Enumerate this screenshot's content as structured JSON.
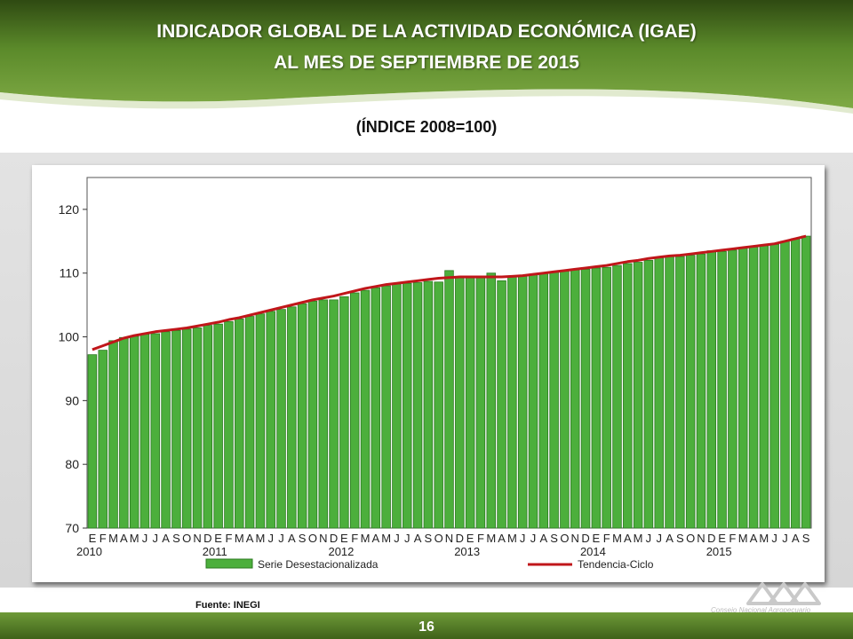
{
  "slide": {
    "title_line1": "INDICADOR GLOBAL DE LA ACTIVIDAD ECONÓMICA (IGAE)",
    "title_line2": "AL MES DE SEPTIEMBRE DE 2015",
    "subtitle": "(ÍNDICE 2008=100)",
    "source": "Fuente: INEGI",
    "page_number": "16",
    "logo_text": "Consejo Nacional Agropecuario",
    "colors": {
      "header_green": "#5a7f28",
      "bar_green": "#4caf3c",
      "trend_red": "#c0161a"
    }
  },
  "chart_data": {
    "type": "bar",
    "ylim": [
      70,
      125
    ],
    "yticks": [
      70,
      80,
      90,
      100,
      110,
      120
    ],
    "grid": false,
    "month_labels": [
      "E",
      "F",
      "M",
      "A",
      "M",
      "J",
      "J",
      "A",
      "S",
      "O",
      "N",
      "D",
      "E",
      "F",
      "M",
      "A",
      "M",
      "J",
      "J",
      "A",
      "S",
      "O",
      "N",
      "D",
      "E",
      "F",
      "M",
      "A",
      "M",
      "J",
      "J",
      "A",
      "S",
      "O",
      "N",
      "D",
      "E",
      "F",
      "M",
      "A",
      "M",
      "J",
      "J",
      "A",
      "S",
      "O",
      "N",
      "D",
      "E",
      "F",
      "M",
      "A",
      "M",
      "J",
      "J",
      "A",
      "S",
      "O",
      "N",
      "D",
      "E",
      "F",
      "M",
      "A",
      "M",
      "J",
      "J",
      "A",
      "S"
    ],
    "year_labels": [
      {
        "label": "2010",
        "month_index": 0
      },
      {
        "label": "2011",
        "month_index": 12
      },
      {
        "label": "2012",
        "month_index": 24
      },
      {
        "label": "2013",
        "month_index": 36
      },
      {
        "label": "2014",
        "month_index": 48
      },
      {
        "label": "2015",
        "month_index": 60
      }
    ],
    "legend_position": "bottom",
    "series": [
      {
        "name": "Serie Desestacionalizada",
        "kind": "bar",
        "values": [
          97.2,
          97.9,
          99.4,
          99.9,
          100.1,
          100.4,
          100.5,
          100.8,
          101.0,
          101.2,
          101.4,
          101.8,
          102.0,
          102.4,
          102.8,
          103.2,
          103.6,
          104.0,
          104.3,
          104.7,
          105.2,
          105.6,
          105.8,
          105.8,
          106.3,
          106.9,
          107.3,
          107.7,
          108.0,
          108.3,
          108.4,
          108.5,
          108.7,
          108.6,
          110.4,
          109.3,
          109.4,
          109.5,
          110.0,
          108.8,
          109.5,
          109.6,
          109.8,
          110.0,
          110.2,
          110.4,
          110.5,
          110.6,
          110.8,
          110.9,
          111.2,
          111.5,
          111.7,
          112.0,
          112.4,
          112.7,
          112.6,
          112.8,
          113.0,
          113.5,
          113.4,
          113.6,
          113.9,
          114.1,
          114.3,
          114.5,
          115.0,
          115.4,
          115.8
        ]
      },
      {
        "name": "Tendencia-Ciclo",
        "kind": "line",
        "values": [
          98.0,
          98.6,
          99.2,
          99.8,
          100.2,
          100.5,
          100.8,
          101.0,
          101.2,
          101.4,
          101.7,
          102.0,
          102.3,
          102.7,
          103.0,
          103.4,
          103.8,
          104.2,
          104.6,
          105.0,
          105.4,
          105.8,
          106.1,
          106.4,
          106.8,
          107.2,
          107.6,
          107.9,
          108.2,
          108.4,
          108.6,
          108.8,
          109.0,
          109.2,
          109.3,
          109.4,
          109.4,
          109.4,
          109.4,
          109.4,
          109.5,
          109.6,
          109.8,
          110.0,
          110.2,
          110.4,
          110.6,
          110.8,
          111.0,
          111.2,
          111.5,
          111.8,
          112.0,
          112.3,
          112.5,
          112.7,
          112.8,
          113.0,
          113.2,
          113.4,
          113.6,
          113.8,
          114.0,
          114.2,
          114.4,
          114.6,
          115.0,
          115.4,
          115.8
        ]
      }
    ]
  }
}
